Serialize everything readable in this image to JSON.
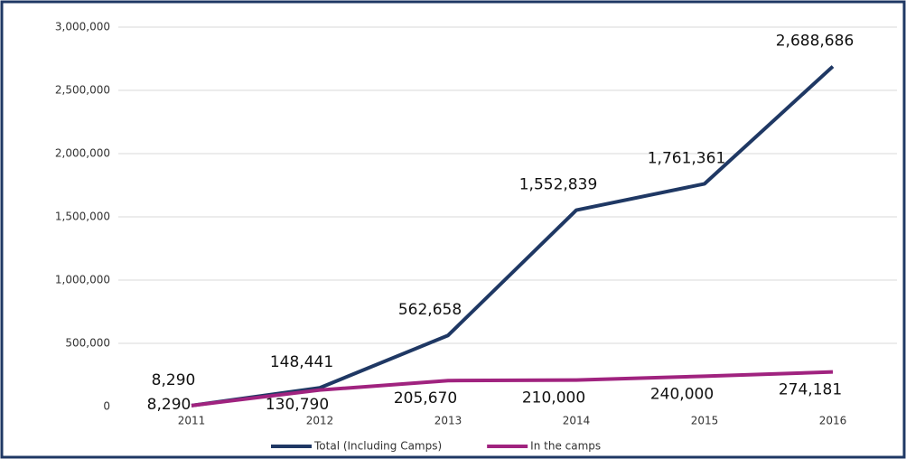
{
  "chart_data": {
    "type": "line",
    "categories": [
      "2011",
      "2012",
      "2013",
      "2014",
      "2015",
      "2016"
    ],
    "series": [
      {
        "name": "Total (Including Camps)",
        "color": "#1f3864",
        "values": [
          8290,
          148441,
          562658,
          1552839,
          1761361,
          2688686
        ],
        "value_labels": [
          "8,290",
          "148,441",
          "562,658",
          "1,552,839",
          "1,761,361",
          "2,688,686"
        ]
      },
      {
        "name": "In the camps",
        "color": "#a0237f",
        "values": [
          8290,
          130790,
          205670,
          210000,
          240000,
          274181
        ],
        "value_labels": [
          "8,290",
          "130,790",
          "205,670",
          "210,000",
          "240,000",
          "274,181"
        ]
      }
    ],
    "ylim": [
      0,
      3000000
    ],
    "yticks": [
      0,
      {
        "value": 500000,
        "label": "500,000"
      },
      {
        "value": 1000000,
        "label": "1,000,000"
      },
      {
        "value": 1500000,
        "label": "1,500,000"
      },
      {
        "value": 2000000,
        "label": "2,000,000"
      },
      {
        "value": 2500000,
        "label": "2,500,000"
      },
      {
        "value": 3000000,
        "label": "3,000,000"
      }
    ],
    "grid": true,
    "legend": "bottom"
  }
}
